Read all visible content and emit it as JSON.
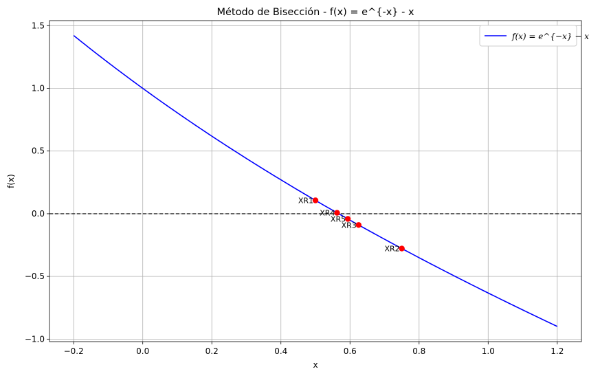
{
  "chart_data": {
    "type": "line",
    "title": "Método de Bisección - f(x) = e^{-x} - x",
    "xlabel": "x",
    "ylabel": "f(x)",
    "xlim": [
      -0.27,
      1.27
    ],
    "ylim": [
      -1.02,
      1.54
    ],
    "xticks": [
      -0.2,
      0.0,
      0.2,
      0.4,
      0.6,
      0.8,
      1.0,
      1.2
    ],
    "xtick_labels": [
      "−0.2",
      "0.0",
      "0.2",
      "0.4",
      "0.6",
      "0.8",
      "1.0",
      "1.2"
    ],
    "yticks": [
      -1.0,
      -0.5,
      0.0,
      0.5,
      1.0,
      1.5
    ],
    "ytick_labels": [
      "−1.0",
      "−0.5",
      "0.0",
      "0.5",
      "1.0",
      "1.5"
    ],
    "grid": true,
    "legend_position": "top-right",
    "series": [
      {
        "name": "f(x) = e^{−x} − x",
        "color": "#0000ff",
        "function": "exp(-x) - x",
        "x_range": [
          -0.2,
          1.2
        ]
      }
    ],
    "zero_line": {
      "y": 0,
      "style": "dashed",
      "color": "#000000"
    },
    "points": [
      {
        "label": "XR1",
        "x": 0.5,
        "y": 0.1065
      },
      {
        "label": "XR2",
        "x": 0.75,
        "y": -0.2776
      },
      {
        "label": "XR3",
        "x": 0.625,
        "y": -0.0897
      },
      {
        "label": "XR4",
        "x": 0.5625,
        "y": 0.0073
      },
      {
        "label": "XR5",
        "x": 0.59375,
        "y": -0.0415
      }
    ],
    "point_color": "#ff0000"
  }
}
